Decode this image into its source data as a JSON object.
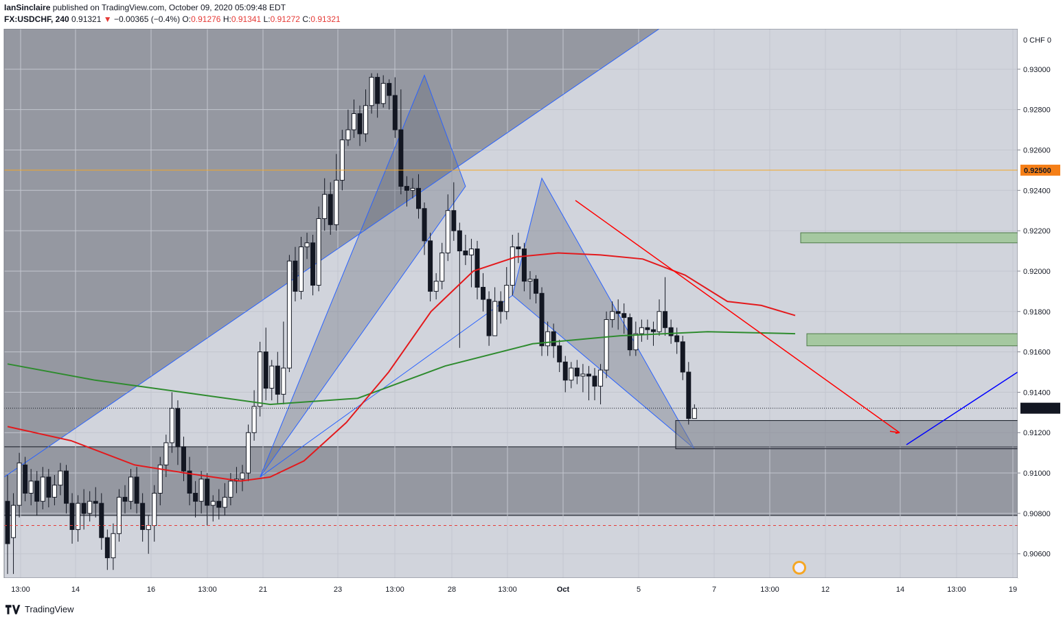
{
  "header": {
    "user": "IanSinclaire",
    "published": " published on TradingView.com, October 09, 2020 05:09:48 EDT",
    "symbol": "FX:USDCHF, 240",
    "last": "0.91321",
    "change_arrow": "▼",
    "change": "−0.00365 (−0.4%)",
    "o_label": "O:",
    "o_val": "0.91276",
    "h_label": "H:",
    "h_val": "0.91341",
    "l_label": "L:",
    "l_val": "0.91272",
    "c_label": "C:",
    "c_val": "0.91321"
  },
  "footer": {
    "brand": "TradingView",
    "logo_icon": "tradingview-logo-icon"
  },
  "chart_data": {
    "type": "candlestick",
    "currency": "CHF",
    "ylim": [
      0.9048,
      0.932
    ],
    "y_ticks": [
      "0.93000",
      "0.92800",
      "0.92600",
      "0.92400",
      "0.92200",
      "0.92000",
      "0.91800",
      "0.91600",
      "0.91400",
      "0.91200",
      "0.91000",
      "0.90800",
      "0.90600"
    ],
    "x_ticks": [
      "13:00",
      "14",
      "16",
      "13:00",
      "21",
      "23",
      "13:00",
      "28",
      "13:00",
      "Oct",
      "5",
      "7",
      "13:00",
      "12",
      "14",
      "13:00",
      "19"
    ],
    "price_labels": [
      {
        "value": "0.92500",
        "color": "#f57f17"
      },
      {
        "value": "0.91321",
        "color": "#131722"
      }
    ],
    "lines": {
      "horizontal_orange": 0.925,
      "last_price_dotted": 0.91321,
      "dashed_red": 0.9074
    },
    "candles": [
      [
        0.9086,
        0.9065,
        0.9099,
        0.905
      ],
      [
        0.9068,
        0.9084,
        0.909,
        0.905
      ],
      [
        0.9084,
        0.9105,
        0.911,
        0.9078
      ],
      [
        0.9104,
        0.909,
        0.9108,
        0.9086
      ],
      [
        0.909,
        0.9096,
        0.9102,
        0.9084
      ],
      [
        0.9096,
        0.9086,
        0.9101,
        0.9079
      ],
      [
        0.9086,
        0.9098,
        0.9103,
        0.9082
      ],
      [
        0.9098,
        0.9088,
        0.9102,
        0.9083
      ],
      [
        0.9088,
        0.9094,
        0.9099,
        0.9084
      ],
      [
        0.9094,
        0.9101,
        0.9105,
        0.9089
      ],
      [
        0.9101,
        0.9085,
        0.9104,
        0.908
      ],
      [
        0.9085,
        0.9072,
        0.909,
        0.9065
      ],
      [
        0.9072,
        0.9085,
        0.9089,
        0.9066
      ],
      [
        0.9085,
        0.908,
        0.9092,
        0.9072
      ],
      [
        0.908,
        0.9086,
        0.9091,
        0.9076
      ],
      [
        0.9086,
        0.9085,
        0.9093,
        0.9078
      ],
      [
        0.9085,
        0.9068,
        0.909,
        0.9062
      ],
      [
        0.9068,
        0.9058,
        0.9072,
        0.9052
      ],
      [
        0.9058,
        0.907,
        0.9075,
        0.9052
      ],
      [
        0.907,
        0.9088,
        0.9092,
        0.9066
      ],
      [
        0.9088,
        0.9086,
        0.9094,
        0.908
      ],
      [
        0.9086,
        0.9098,
        0.9102,
        0.9082
      ],
      [
        0.9098,
        0.9085,
        0.9103,
        0.908
      ],
      [
        0.9085,
        0.9072,
        0.909,
        0.9066
      ],
      [
        0.9072,
        0.9074,
        0.9079,
        0.906
      ],
      [
        0.9074,
        0.909,
        0.9094,
        0.9066
      ],
      [
        0.909,
        0.9104,
        0.9108,
        0.9084
      ],
      [
        0.9104,
        0.9115,
        0.9119,
        0.9098
      ],
      [
        0.9115,
        0.9132,
        0.914,
        0.911
      ],
      [
        0.9132,
        0.9113,
        0.9136,
        0.9104
      ],
      [
        0.9113,
        0.9101,
        0.9118,
        0.9096
      ],
      [
        0.9101,
        0.909,
        0.9108,
        0.9084
      ],
      [
        0.909,
        0.9086,
        0.9096,
        0.9078
      ],
      [
        0.9086,
        0.9097,
        0.9101,
        0.908
      ],
      [
        0.9097,
        0.9084,
        0.91,
        0.9074
      ],
      [
        0.9084,
        0.9086,
        0.9089,
        0.9076
      ],
      [
        0.9086,
        0.9083,
        0.9092,
        0.9077
      ],
      [
        0.9083,
        0.9088,
        0.9095,
        0.9079
      ],
      [
        0.9088,
        0.9096,
        0.91,
        0.9084
      ],
      [
        0.9096,
        0.9097,
        0.9103,
        0.909
      ],
      [
        0.9097,
        0.91,
        0.9104,
        0.9091
      ],
      [
        0.91,
        0.912,
        0.9124,
        0.9096
      ],
      [
        0.912,
        0.9133,
        0.9141,
        0.9116
      ],
      [
        0.9133,
        0.916,
        0.9165,
        0.9128
      ],
      [
        0.916,
        0.9142,
        0.9172,
        0.9136
      ],
      [
        0.9142,
        0.9153,
        0.9156,
        0.9136
      ],
      [
        0.9153,
        0.9139,
        0.916,
        0.9134
      ],
      [
        0.9139,
        0.9152,
        0.9175,
        0.9134
      ],
      [
        0.9152,
        0.9205,
        0.9208,
        0.915
      ],
      [
        0.9205,
        0.919,
        0.9212,
        0.9185
      ],
      [
        0.919,
        0.9212,
        0.9217,
        0.9186
      ],
      [
        0.9212,
        0.9214,
        0.9219,
        0.9206
      ],
      [
        0.9214,
        0.9193,
        0.9218,
        0.9188
      ],
      [
        0.9193,
        0.9226,
        0.9232,
        0.919
      ],
      [
        0.9226,
        0.9238,
        0.9246,
        0.922
      ],
      [
        0.9238,
        0.9223,
        0.9244,
        0.9218
      ],
      [
        0.9223,
        0.9245,
        0.9258,
        0.922
      ],
      [
        0.9245,
        0.9265,
        0.927,
        0.924
      ],
      [
        0.9265,
        0.927,
        0.928,
        0.9262
      ],
      [
        0.927,
        0.9278,
        0.9285,
        0.9266
      ],
      [
        0.9278,
        0.9268,
        0.9282,
        0.9262
      ],
      [
        0.9268,
        0.9282,
        0.929,
        0.9264
      ],
      [
        0.9282,
        0.9296,
        0.9298,
        0.9278
      ],
      [
        0.9296,
        0.9283,
        0.9298,
        0.9276
      ],
      [
        0.9283,
        0.9293,
        0.9297,
        0.9281
      ],
      [
        0.9293,
        0.9287,
        0.9295,
        0.928
      ],
      [
        0.9287,
        0.927,
        0.9296,
        0.9266
      ],
      [
        0.927,
        0.9242,
        0.929,
        0.9238
      ],
      [
        0.9242,
        0.924,
        0.9247,
        0.9232
      ],
      [
        0.924,
        0.9241,
        0.9246,
        0.9236
      ],
      [
        0.9241,
        0.9231,
        0.9248,
        0.9226
      ],
      [
        0.9231,
        0.9215,
        0.9234,
        0.9208
      ],
      [
        0.9215,
        0.919,
        0.9219,
        0.9185
      ],
      [
        0.919,
        0.9195,
        0.9199,
        0.9186
      ],
      [
        0.9195,
        0.9209,
        0.9214,
        0.9191
      ],
      [
        0.9209,
        0.923,
        0.9238,
        0.9205
      ],
      [
        0.923,
        0.922,
        0.9244,
        0.9215
      ],
      [
        0.922,
        0.921,
        0.9224,
        0.9162
      ],
      [
        0.921,
        0.9208,
        0.9218,
        0.9203
      ],
      [
        0.9208,
        0.9211,
        0.9216,
        0.9192
      ],
      [
        0.9211,
        0.9192,
        0.9215,
        0.9186
      ],
      [
        0.9192,
        0.9186,
        0.9199,
        0.918
      ],
      [
        0.9186,
        0.9168,
        0.919,
        0.9163
      ],
      [
        0.9168,
        0.9185,
        0.9192,
        0.9172
      ],
      [
        0.9185,
        0.918,
        0.919,
        0.9174
      ],
      [
        0.918,
        0.9193,
        0.9202,
        0.9176
      ],
      [
        0.9193,
        0.9212,
        0.9218,
        0.9188
      ],
      [
        0.9212,
        0.9211,
        0.9219,
        0.9204
      ],
      [
        0.9211,
        0.9195,
        0.9214,
        0.919
      ],
      [
        0.9195,
        0.9196,
        0.92,
        0.9186
      ],
      [
        0.9196,
        0.9189,
        0.9198,
        0.9184
      ],
      [
        0.9189,
        0.9163,
        0.9192,
        0.9158
      ],
      [
        0.9163,
        0.917,
        0.9175,
        0.9158
      ],
      [
        0.917,
        0.9163,
        0.9174,
        0.9157
      ],
      [
        0.9163,
        0.9155,
        0.9166,
        0.915
      ],
      [
        0.9155,
        0.9146,
        0.9158,
        0.914
      ],
      [
        0.9146,
        0.9152,
        0.9155,
        0.9142
      ],
      [
        0.9152,
        0.9148,
        0.9156,
        0.9144
      ],
      [
        0.9148,
        0.9149,
        0.9154,
        0.914
      ],
      [
        0.9149,
        0.9148,
        0.9153,
        0.9136
      ],
      [
        0.9148,
        0.9143,
        0.9152,
        0.9136
      ],
      [
        0.9143,
        0.9151,
        0.9154,
        0.9134
      ],
      [
        0.9151,
        0.9176,
        0.918,
        0.9147
      ],
      [
        0.9176,
        0.918,
        0.9185,
        0.9172
      ],
      [
        0.918,
        0.9179,
        0.9186,
        0.9171
      ],
      [
        0.9179,
        0.9177,
        0.9184,
        0.9169
      ],
      [
        0.9177,
        0.9161,
        0.9179,
        0.9158
      ],
      [
        0.9161,
        0.9169,
        0.9175,
        0.9158
      ],
      [
        0.9169,
        0.9172,
        0.9176,
        0.9165
      ],
      [
        0.9172,
        0.9171,
        0.9176,
        0.9166
      ],
      [
        0.9171,
        0.917,
        0.9175,
        0.9163
      ],
      [
        0.917,
        0.918,
        0.9186,
        0.9168
      ],
      [
        0.918,
        0.9172,
        0.9197,
        0.9168
      ],
      [
        0.9172,
        0.9168,
        0.9176,
        0.9164
      ],
      [
        0.9168,
        0.9165,
        0.9172,
        0.9159
      ],
      [
        0.9165,
        0.915,
        0.9168,
        0.9146
      ],
      [
        0.915,
        0.9127,
        0.9155,
        0.9124
      ],
      [
        0.9127,
        0.9132,
        0.9134,
        0.9127
      ]
    ],
    "ma_red": [
      [
        0,
        0.9123
      ],
      [
        15,
        0.9116
      ],
      [
        30,
        0.9104
      ],
      [
        42,
        0.91
      ],
      [
        55,
        0.9096
      ],
      [
        62,
        0.9098
      ],
      [
        70,
        0.9106
      ],
      [
        80,
        0.9125
      ],
      [
        90,
        0.915
      ],
      [
        100,
        0.918
      ],
      [
        110,
        0.92
      ],
      [
        120,
        0.9207
      ],
      [
        130,
        0.9209
      ],
      [
        140,
        0.9208
      ],
      [
        150,
        0.9206
      ],
      [
        160,
        0.9198
      ],
      [
        170,
        0.9185
      ],
      [
        178,
        0.9183
      ],
      [
        186,
        0.9178
      ]
    ],
    "ma_green": [
      [
        0,
        0.9154
      ],
      [
        20,
        0.9146
      ],
      [
        40,
        0.914
      ],
      [
        60,
        0.9134
      ],
      [
        80,
        0.9137
      ],
      [
        100,
        0.9153
      ],
      [
        120,
        0.9164
      ],
      [
        140,
        0.9168
      ],
      [
        160,
        0.917
      ],
      [
        180,
        0.9169
      ]
    ]
  }
}
